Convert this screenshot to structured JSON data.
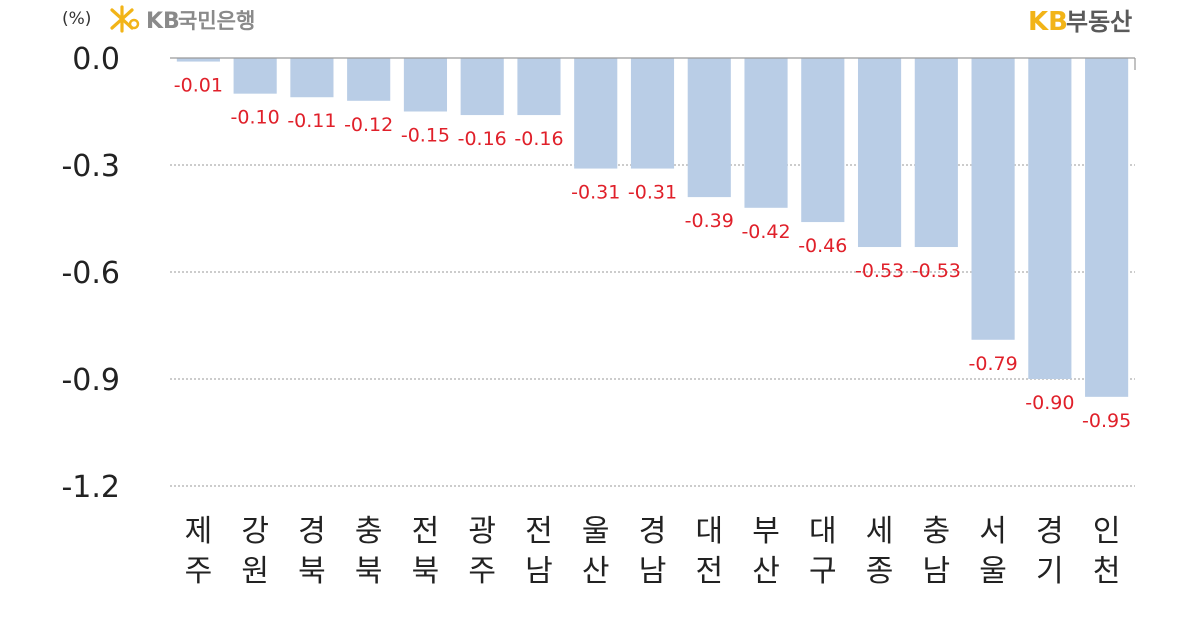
{
  "header": {
    "unit": "(%)",
    "brand_left_kb": "KB",
    "brand_left_name": "국민은행",
    "brand_right_kb": "KB",
    "brand_right_name": "부동산",
    "colors": {
      "kb_yellow": "#f2b418",
      "gray_text": "#8a8a8a"
    },
    "logo_icon": "kb-star-icon"
  },
  "chart_data": {
    "type": "bar",
    "title": "",
    "xlabel": "",
    "ylabel": "(%)",
    "ylim": [
      -1.2,
      0.0
    ],
    "yticks": [
      "0.0",
      "-0.3",
      "-0.6",
      "-0.9",
      "-1.2"
    ],
    "grid": true,
    "categories": [
      [
        "제",
        "주"
      ],
      [
        "강",
        "원"
      ],
      [
        "경",
        "북"
      ],
      [
        "충",
        "북"
      ],
      [
        "전",
        "북"
      ],
      [
        "광",
        "주"
      ],
      [
        "전",
        "남"
      ],
      [
        "울",
        "산"
      ],
      [
        "경",
        "남"
      ],
      [
        "대",
        "전"
      ],
      [
        "부",
        "산"
      ],
      [
        "대",
        "구"
      ],
      [
        "세",
        "종"
      ],
      [
        "충",
        "남"
      ],
      [
        "서",
        "울"
      ],
      [
        "경",
        "기"
      ],
      [
        "인",
        "천"
      ]
    ],
    "values": [
      -0.01,
      -0.1,
      -0.11,
      -0.12,
      -0.15,
      -0.16,
      -0.16,
      -0.31,
      -0.31,
      -0.39,
      -0.42,
      -0.46,
      -0.53,
      -0.53,
      -0.79,
      -0.9,
      -0.95
    ],
    "labels": [
      "-0.01",
      "-0.10",
      "-0.11",
      "-0.12",
      "-0.15",
      "-0.16",
      "-0.16",
      "-0.31",
      "-0.31",
      "-0.39",
      "-0.42",
      "-0.46",
      "-0.53",
      "-0.53",
      "-0.79",
      "-0.90",
      "-0.95"
    ],
    "colors": {
      "bar": "#b9cde6",
      "label": "#e0202a"
    }
  }
}
